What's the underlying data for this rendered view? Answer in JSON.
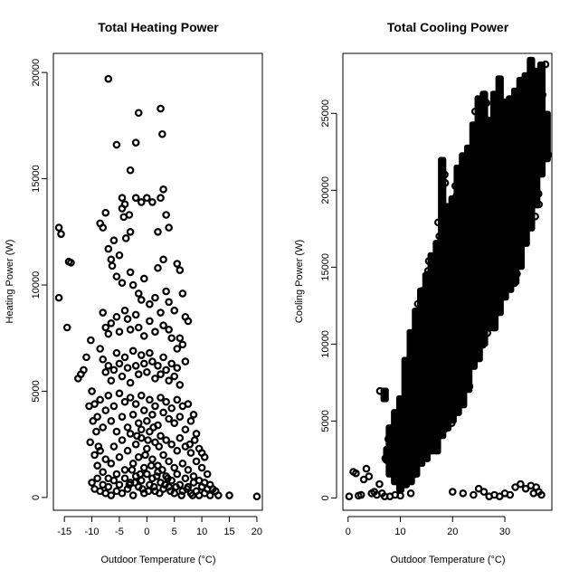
{
  "chart_data": [
    {
      "type": "scatter",
      "title": "Total Heating Power",
      "xlabel": "Outdoor Temperature (°C)",
      "ylabel": "Heating Power (W)",
      "xlim": [
        -17,
        21
      ],
      "ylim": [
        -600,
        20900
      ],
      "xticks": [
        -15,
        -10,
        -5,
        0,
        5,
        10,
        15,
        20
      ],
      "yticks": [
        0,
        5000,
        10000,
        15000,
        20000
      ],
      "marker": "open-circle",
      "color": "#000000",
      "points": [
        [
          -16,
          12700
        ],
        [
          -15.6,
          12400
        ],
        [
          -16,
          9400
        ],
        [
          -14.2,
          11100
        ],
        [
          -13.8,
          11050
        ],
        [
          -14.5,
          8000
        ],
        [
          -12.5,
          5600
        ],
        [
          -12,
          5800
        ],
        [
          -11.5,
          6000
        ],
        [
          -11,
          6600
        ],
        [
          -10.2,
          7400
        ],
        [
          -10,
          5000
        ],
        [
          -9.5,
          4400
        ],
        [
          -10.5,
          4300
        ],
        [
          -9.8,
          3600
        ],
        [
          -9.2,
          3100
        ],
        [
          -10.3,
          2600
        ],
        [
          -8.8,
          2400
        ],
        [
          -8.5,
          12900
        ],
        [
          -8,
          12700
        ],
        [
          -7.5,
          13400
        ],
        [
          -7,
          11700
        ],
        [
          -6.5,
          11200
        ],
        [
          -6,
          12100
        ],
        [
          -4.5,
          13600
        ],
        [
          -3.8,
          12200
        ],
        [
          -3,
          12500
        ],
        [
          -2,
          14100
        ],
        [
          -1,
          13900
        ],
        [
          0,
          14100
        ],
        [
          1,
          13900
        ],
        [
          2.5,
          14100
        ],
        [
          3,
          14500
        ],
        [
          3.5,
          13300
        ],
        [
          2,
          12500
        ],
        [
          4,
          12700
        ],
        [
          -7,
          19700
        ],
        [
          -1.5,
          18100
        ],
        [
          2.5,
          18300
        ],
        [
          -2,
          16700
        ],
        [
          2.8,
          17100
        ],
        [
          -5.5,
          16600
        ],
        [
          -3,
          15400
        ],
        [
          -4.5,
          14100
        ],
        [
          -4,
          13800
        ],
        [
          -3.2,
          13300
        ],
        [
          -4.2,
          13200
        ],
        [
          -5,
          11400
        ],
        [
          -6.3,
          10900
        ],
        [
          -5.5,
          10400
        ],
        [
          -4.5,
          10100
        ],
        [
          -3,
          10600
        ],
        [
          -2.5,
          10000
        ],
        [
          -1.5,
          9600
        ],
        [
          -0.5,
          10300
        ],
        [
          -1,
          9300
        ],
        [
          0.5,
          9100
        ],
        [
          1.5,
          9400
        ],
        [
          2,
          10800
        ],
        [
          3,
          11200
        ],
        [
          5.5,
          11000
        ],
        [
          6,
          10700
        ],
        [
          6.5,
          9600
        ],
        [
          3.5,
          9700
        ],
        [
          4,
          9200
        ],
        [
          5,
          8800
        ],
        [
          7,
          8500
        ],
        [
          7.5,
          8300
        ],
        [
          6,
          7500
        ],
        [
          6.5,
          7200
        ],
        [
          5.5,
          7000
        ],
        [
          7,
          6400
        ],
        [
          -8,
          8700
        ],
        [
          -7.5,
          8000
        ],
        [
          -7,
          7700
        ],
        [
          -6.5,
          8200
        ],
        [
          -5.5,
          8500
        ],
        [
          -5,
          7800
        ],
        [
          -4,
          8800
        ],
        [
          -3.5,
          8400
        ],
        [
          -3,
          7900
        ],
        [
          -2,
          8600
        ],
        [
          -1.5,
          8000
        ],
        [
          -0.5,
          7600
        ],
        [
          0.5,
          8300
        ],
        [
          1.5,
          7800
        ],
        [
          2.5,
          8700
        ],
        [
          3,
          8100
        ],
        [
          4,
          7900
        ],
        [
          4.5,
          7500
        ],
        [
          -8.5,
          7000
        ],
        [
          -8,
          6500
        ],
        [
          -7.5,
          5900
        ],
        [
          -7,
          6200
        ],
        [
          -6.5,
          5500
        ],
        [
          -6,
          6000
        ],
        [
          -5.5,
          6800
        ],
        [
          -5,
          6300
        ],
        [
          -4.5,
          5700
        ],
        [
          -4,
          6600
        ],
        [
          -3.5,
          6100
        ],
        [
          -3,
          5400
        ],
        [
          -2.5,
          6900
        ],
        [
          -2,
          6200
        ],
        [
          -1.5,
          5800
        ],
        [
          -1,
          6700
        ],
        [
          -0.5,
          6300
        ],
        [
          0,
          5900
        ],
        [
          0.5,
          6800
        ],
        [
          1,
          6400
        ],
        [
          1.5,
          5600
        ],
        [
          2,
          6200
        ],
        [
          2.5,
          5800
        ],
        [
          3,
          6600
        ],
        [
          3.5,
          6000
        ],
        [
          4,
          5500
        ],
        [
          4.5,
          6300
        ],
        [
          5,
          5700
        ],
        [
          5.5,
          6100
        ],
        [
          6,
          5300
        ],
        [
          -9,
          3800
        ],
        [
          -8.5,
          4600
        ],
        [
          -8,
          3300
        ],
        [
          -7.5,
          4100
        ],
        [
          -7,
          4800
        ],
        [
          -6.5,
          3600
        ],
        [
          -6,
          4300
        ],
        [
          -5.5,
          3100
        ],
        [
          -5,
          4900
        ],
        [
          -4.5,
          3800
        ],
        [
          -4,
          4500
        ],
        [
          -3.5,
          3300
        ],
        [
          -3,
          4700
        ],
        [
          -2.5,
          3900
        ],
        [
          -2,
          4400
        ],
        [
          -1.5,
          3500
        ],
        [
          -1,
          4800
        ],
        [
          -0.5,
          4100
        ],
        [
          0,
          3600
        ],
        [
          0.5,
          4600
        ],
        [
          1,
          3900
        ],
        [
          1.5,
          4300
        ],
        [
          2,
          3400
        ],
        [
          2.5,
          4700
        ],
        [
          3,
          4000
        ],
        [
          3.5,
          4500
        ],
        [
          4,
          3700
        ],
        [
          4.5,
          4200
        ],
        [
          5,
          3500
        ],
        [
          5.5,
          4600
        ],
        [
          6,
          3800
        ],
        [
          6.5,
          4300
        ],
        [
          7,
          3200
        ],
        [
          7.5,
          4400
        ],
        [
          8,
          3600
        ],
        [
          8.5,
          3900
        ],
        [
          9,
          3000
        ],
        [
          8.7,
          2700
        ],
        [
          7.8,
          2500
        ],
        [
          9.5,
          2300
        ],
        [
          10,
          2100
        ],
        [
          10.5,
          1900
        ],
        [
          -9.5,
          2000
        ],
        [
          -9,
          1500
        ],
        [
          -8.5,
          2200
        ],
        [
          -8,
          1200
        ],
        [
          -7.5,
          1800
        ],
        [
          -7,
          900
        ],
        [
          -6.5,
          1600
        ],
        [
          -6,
          2400
        ],
        [
          -5.5,
          1100
        ],
        [
          -5,
          1900
        ],
        [
          -4.5,
          2700
        ],
        [
          -4,
          1300
        ],
        [
          -3.5,
          2200
        ],
        [
          -3,
          3000
        ],
        [
          -2.5,
          1600
        ],
        [
          -2,
          2500
        ],
        [
          -1.5,
          1900
        ],
        [
          -1,
          2800
        ],
        [
          -0.5,
          1400
        ],
        [
          0,
          2300
        ],
        [
          0.5,
          3100
        ],
        [
          1,
          1800
        ],
        [
          1.5,
          2600
        ],
        [
          2,
          1500
        ],
        [
          2.5,
          2900
        ],
        [
          3,
          2000
        ],
        [
          3.5,
          2700
        ],
        [
          4,
          1700
        ],
        [
          4.5,
          2500
        ],
        [
          5,
          1400
        ],
        [
          5.5,
          2200
        ],
        [
          6,
          2800
        ],
        [
          6.5,
          1600
        ],
        [
          7,
          2400
        ],
        [
          7.5,
          1300
        ],
        [
          8,
          2100
        ],
        [
          8.5,
          1000
        ],
        [
          9,
          1700
        ],
        [
          9.5,
          800
        ],
        [
          10,
          1400
        ],
        [
          10.5,
          700
        ],
        [
          11,
          1100
        ],
        [
          11.5,
          600
        ],
        [
          12,
          400
        ],
        [
          -10,
          700
        ],
        [
          -9.5,
          400
        ],
        [
          -9,
          900
        ],
        [
          -8.5,
          300
        ],
        [
          -8,
          600
        ],
        [
          -7.5,
          200
        ],
        [
          -7,
          500
        ],
        [
          -6.5,
          100
        ],
        [
          -6,
          800
        ],
        [
          -5.5,
          300
        ],
        [
          -5,
          600
        ],
        [
          -4.5,
          200
        ],
        [
          -4,
          900
        ],
        [
          -3.5,
          400
        ],
        [
          -3,
          700
        ],
        [
          -2.5,
          100
        ],
        [
          -2,
          1000
        ],
        [
          -1.5,
          500
        ],
        [
          -1,
          800
        ],
        [
          -0.5,
          200
        ],
        [
          0,
          1100
        ],
        [
          0.5,
          600
        ],
        [
          1,
          900
        ],
        [
          1.5,
          300
        ],
        [
          2,
          1200
        ],
        [
          2.5,
          700
        ],
        [
          3,
          400
        ],
        [
          3.5,
          1000
        ],
        [
          4,
          500
        ],
        [
          4.5,
          800
        ],
        [
          5,
          200
        ],
        [
          5.5,
          1100
        ],
        [
          6,
          600
        ],
        [
          6.5,
          300
        ],
        [
          7,
          900
        ],
        [
          7.5,
          500
        ],
        [
          8,
          200
        ],
        [
          8.5,
          700
        ],
        [
          9,
          300
        ],
        [
          9.5,
          100
        ],
        [
          10,
          500
        ],
        [
          10.5,
          200
        ],
        [
          11,
          400
        ],
        [
          11.5,
          100
        ],
        [
          12.5,
          300
        ],
        [
          13,
          100
        ],
        [
          -1,
          3200
        ],
        [
          -1.8,
          2900
        ],
        [
          0.2,
          2700
        ],
        [
          1.2,
          3300
        ],
        [
          2.2,
          2400
        ],
        [
          -0.3,
          2000
        ],
        [
          -2.7,
          1300
        ],
        [
          -1.2,
          1100
        ],
        [
          0.8,
          1500
        ],
        [
          1.8,
          1000
        ],
        [
          2.8,
          1300
        ],
        [
          3.8,
          900
        ],
        [
          -3.2,
          600
        ],
        [
          -2.2,
          700
        ],
        [
          -0.8,
          400
        ],
        [
          0.3,
          300
        ],
        [
          1.3,
          500
        ],
        [
          2.3,
          200
        ],
        [
          3.3,
          600
        ],
        [
          4.3,
          300
        ],
        [
          5.3,
          500
        ],
        [
          6.3,
          100
        ],
        [
          7.3,
          400
        ],
        [
          8.3,
          100
        ],
        [
          15,
          100
        ],
        [
          20,
          50
        ]
      ]
    },
    {
      "type": "scatter",
      "title": "Total Cooling Power",
      "xlabel": "Outdoor Temperature (°C)",
      "ylabel": "Cooling Power (W)",
      "xlim": [
        -1,
        39
      ],
      "ylim": [
        -800,
        28900
      ],
      "xticks": [
        0,
        10,
        20,
        30
      ],
      "yticks": [
        0,
        5000,
        10000,
        15000,
        20000,
        25000
      ],
      "marker": "open-circle",
      "color": "#000000",
      "density_rows": [
        [
          7,
          6400,
          7000
        ],
        [
          7.5,
          2400,
          3200
        ],
        [
          8,
          1500,
          4600
        ],
        [
          9,
          1000,
          5600
        ],
        [
          10,
          500,
          6500
        ],
        [
          11,
          800,
          9000
        ],
        [
          12,
          1000,
          10800
        ],
        [
          13,
          1500,
          12200
        ],
        [
          14,
          2200,
          13500
        ],
        [
          15,
          2500,
          14500
        ],
        [
          16,
          3000,
          15800
        ],
        [
          17,
          3000,
          16600
        ],
        [
          18,
          4000,
          22000
        ],
        [
          19,
          4500,
          19000
        ],
        [
          20,
          5000,
          19500
        ],
        [
          21,
          5500,
          21500
        ],
        [
          22,
          6000,
          22300
        ],
        [
          23,
          7000,
          22800
        ],
        [
          24,
          8500,
          24300
        ],
        [
          25,
          9000,
          26000
        ],
        [
          26,
          10000,
          26300
        ],
        [
          27,
          11000,
          24600
        ],
        [
          28,
          11000,
          26300
        ],
        [
          29,
          12000,
          27300
        ],
        [
          30,
          13000,
          25800
        ],
        [
          31,
          13500,
          26000
        ],
        [
          32,
          14000,
          26500
        ],
        [
          33,
          15000,
          27200
        ],
        [
          34,
          16500,
          27500
        ],
        [
          35,
          17500,
          28500
        ],
        [
          36,
          19000,
          27800
        ],
        [
          37,
          21000,
          28200
        ],
        [
          38,
          22000,
          25000
        ]
      ],
      "points": [
        [
          0.2,
          100
        ],
        [
          1,
          1700
        ],
        [
          1.5,
          1600
        ],
        [
          2,
          150
        ],
        [
          2.5,
          200
        ],
        [
          3,
          1200
        ],
        [
          3.5,
          1900
        ],
        [
          4,
          1400
        ],
        [
          4.5,
          300
        ],
        [
          5,
          400
        ],
        [
          5.5,
          200
        ],
        [
          6,
          900
        ],
        [
          6.5,
          300
        ],
        [
          7,
          100
        ],
        [
          8,
          100
        ],
        [
          9,
          200
        ],
        [
          10,
          150
        ],
        [
          12,
          300
        ],
        [
          20,
          400
        ],
        [
          22,
          300
        ],
        [
          24,
          200
        ],
        [
          25,
          600
        ],
        [
          26,
          400
        ],
        [
          27,
          100
        ],
        [
          28,
          200
        ],
        [
          29,
          100
        ],
        [
          30,
          300
        ],
        [
          31,
          200
        ],
        [
          32,
          700
        ],
        [
          33,
          900
        ],
        [
          34,
          600
        ],
        [
          35,
          800
        ],
        [
          36,
          700
        ],
        [
          36.5,
          400
        ],
        [
          37,
          200
        ],
        [
          35.5,
          300
        ]
      ]
    }
  ]
}
